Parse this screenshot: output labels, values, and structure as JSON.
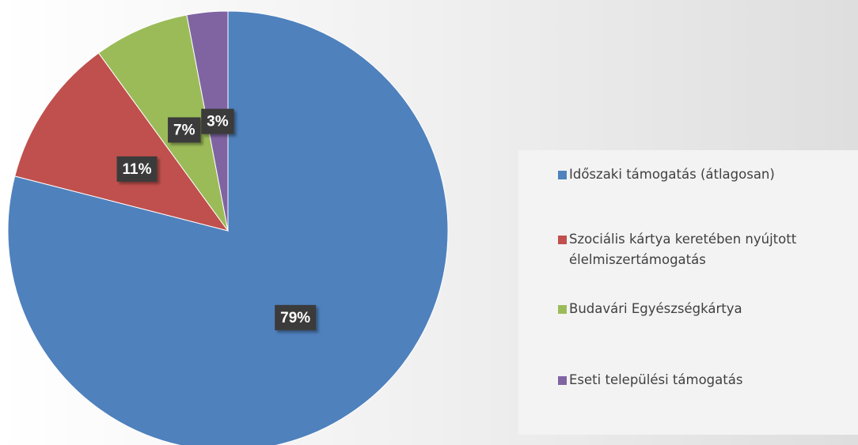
{
  "chart_data": {
    "type": "pie",
    "categories": [
      "Időszaki támogatás (átlagosan)",
      "Szociális kártya keretében nyújtott élelmiszertámogatás",
      "Budavári Egyészségkártya",
      "Eseti települési támogatás"
    ],
    "values": [
      79,
      11,
      7,
      3
    ],
    "value_labels": [
      "79%",
      "11%",
      "7%",
      "3%"
    ],
    "colors": [
      "#4f81bd",
      "#c0504d",
      "#9bbb59",
      "#8064a2"
    ],
    "legend": "right"
  }
}
